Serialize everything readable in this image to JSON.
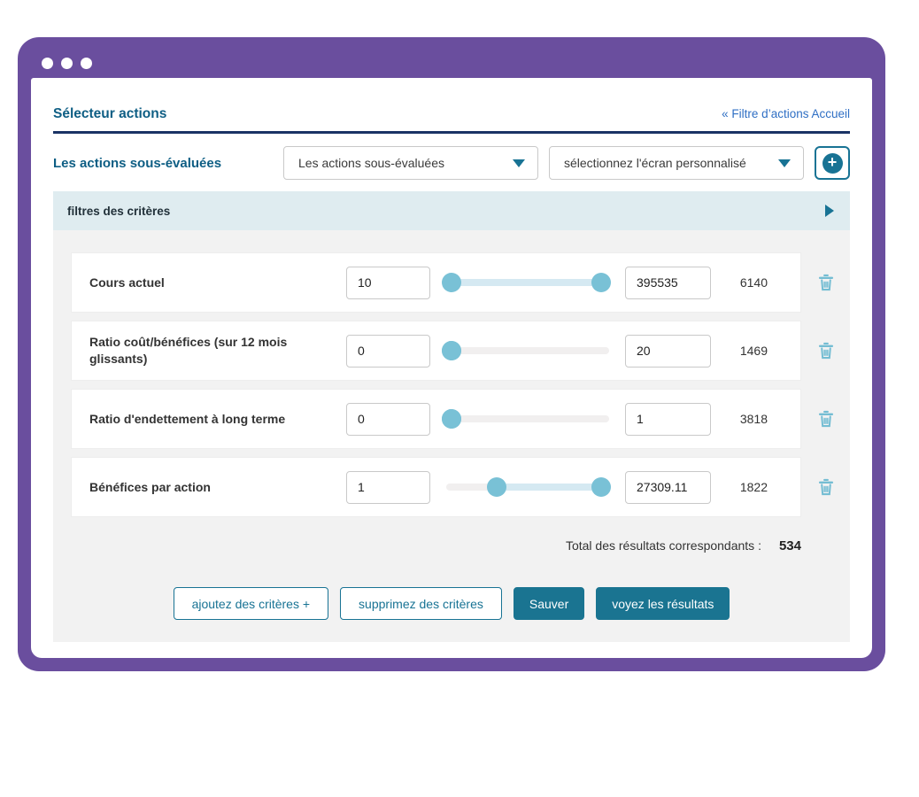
{
  "window": {
    "controls": [
      "dot",
      "dot",
      "dot"
    ]
  },
  "header": {
    "title": "Sélecteur actions",
    "back_link": "« Filtre d’actions Accueil"
  },
  "screener": {
    "active_screen_label": "Les actions sous-évaluées",
    "screen_dropdown": {
      "selected": "Les actions sous-évaluées",
      "icon": "chevron-down-icon"
    },
    "custom_screen_dropdown": {
      "selected": "sélectionnez l'écran personnalisé",
      "icon": "chevron-down-icon"
    },
    "add_screen_button": {
      "icon": "plus-circle-icon",
      "glyph": "+"
    }
  },
  "criteria_section": {
    "title": "filtres des critères",
    "expand_icon": "triangle-right-icon",
    "delete_icon": "trash-icon",
    "rows": [
      {
        "label": "Cours actuel",
        "min": "10",
        "max": "395535",
        "count": "6140",
        "slider": {
          "low_pct": 3,
          "high_pct": 95
        }
      },
      {
        "label": "Ratio coût/bénéfices (sur 12 mois glissants)",
        "min": "0",
        "max": "20",
        "count": "1469",
        "slider": {
          "low_pct": 3,
          "high_pct": 3
        }
      },
      {
        "label": "Ratio d'endettement à long terme",
        "min": "0",
        "max": "1",
        "count": "3818",
        "slider": {
          "low_pct": 3,
          "high_pct": 3
        }
      },
      {
        "label": "Bénéfices par action",
        "min": "1",
        "max": "27309.11",
        "count": "1822",
        "slider": {
          "low_pct": 31,
          "high_pct": 95
        }
      }
    ]
  },
  "summary": {
    "label": "Total des résultats correspondants :",
    "value": "534"
  },
  "actions": {
    "add_criteria": "ajoutez des critères +",
    "remove_criteria": "supprimez des critères",
    "save": "Sauver",
    "view_results": "voyez les résultats"
  },
  "colors": {
    "frame_purple": "#6a4e9e",
    "accent_teal": "#187394",
    "button_teal": "#1a7491",
    "slider_handle": "#79c1d6",
    "trash_icon": "#74bdd3",
    "link_blue": "#2f6fc4",
    "heading_blue": "#0e5e84",
    "divider_navy": "#1a3365",
    "section_bar_bg": "#dfecf0",
    "panel_gray": "#f2f2f2",
    "active_track": "#d5e9f2",
    "inactive_track": "#f1efef"
  }
}
